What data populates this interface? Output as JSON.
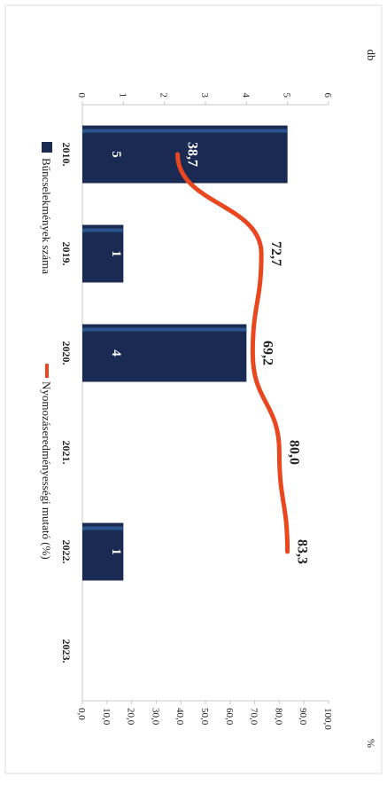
{
  "chart_data": {
    "type": "bar",
    "orientation": "rotated-90-clockwise",
    "categories": [
      "2010.",
      "2019.",
      "2020.",
      "2021.",
      "2022.",
      "2023."
    ],
    "series": [
      {
        "name": "Bűncselekmények száma",
        "kind": "bar",
        "axis": "left",
        "values": [
          5,
          1,
          4,
          null,
          1,
          null
        ],
        "labels": [
          "5",
          "1",
          "4",
          "",
          "1",
          ""
        ]
      },
      {
        "name": "Nyomozáseredményességi mutató (%)",
        "kind": "line",
        "axis": "right",
        "values": [
          38.7,
          72.7,
          69.2,
          80.0,
          83.3,
          null
        ],
        "labels": [
          "38,7",
          "72,7",
          "69,2",
          "80,0",
          "83,3",
          ""
        ]
      }
    ],
    "y_left": {
      "label": "db",
      "ticks": [
        "0",
        "1",
        "2",
        "3",
        "4",
        "5",
        "6"
      ],
      "range": [
        0,
        6
      ]
    },
    "y_right": {
      "label": "%",
      "ticks": [
        "0,0",
        "10,0",
        "20,0",
        "30,0",
        "40,0",
        "50,0",
        "60,0",
        "70,0",
        "80,0",
        "90,0",
        "100,0"
      ],
      "range": [
        0,
        100
      ]
    },
    "legend_position": "top",
    "colors": {
      "bar": "#1a2a52",
      "bar_highlight": "#2e5c9a",
      "line": "#e8471f",
      "axis": "#c8c8c8",
      "text": "#222222",
      "bar_label": "#ffffff"
    }
  }
}
